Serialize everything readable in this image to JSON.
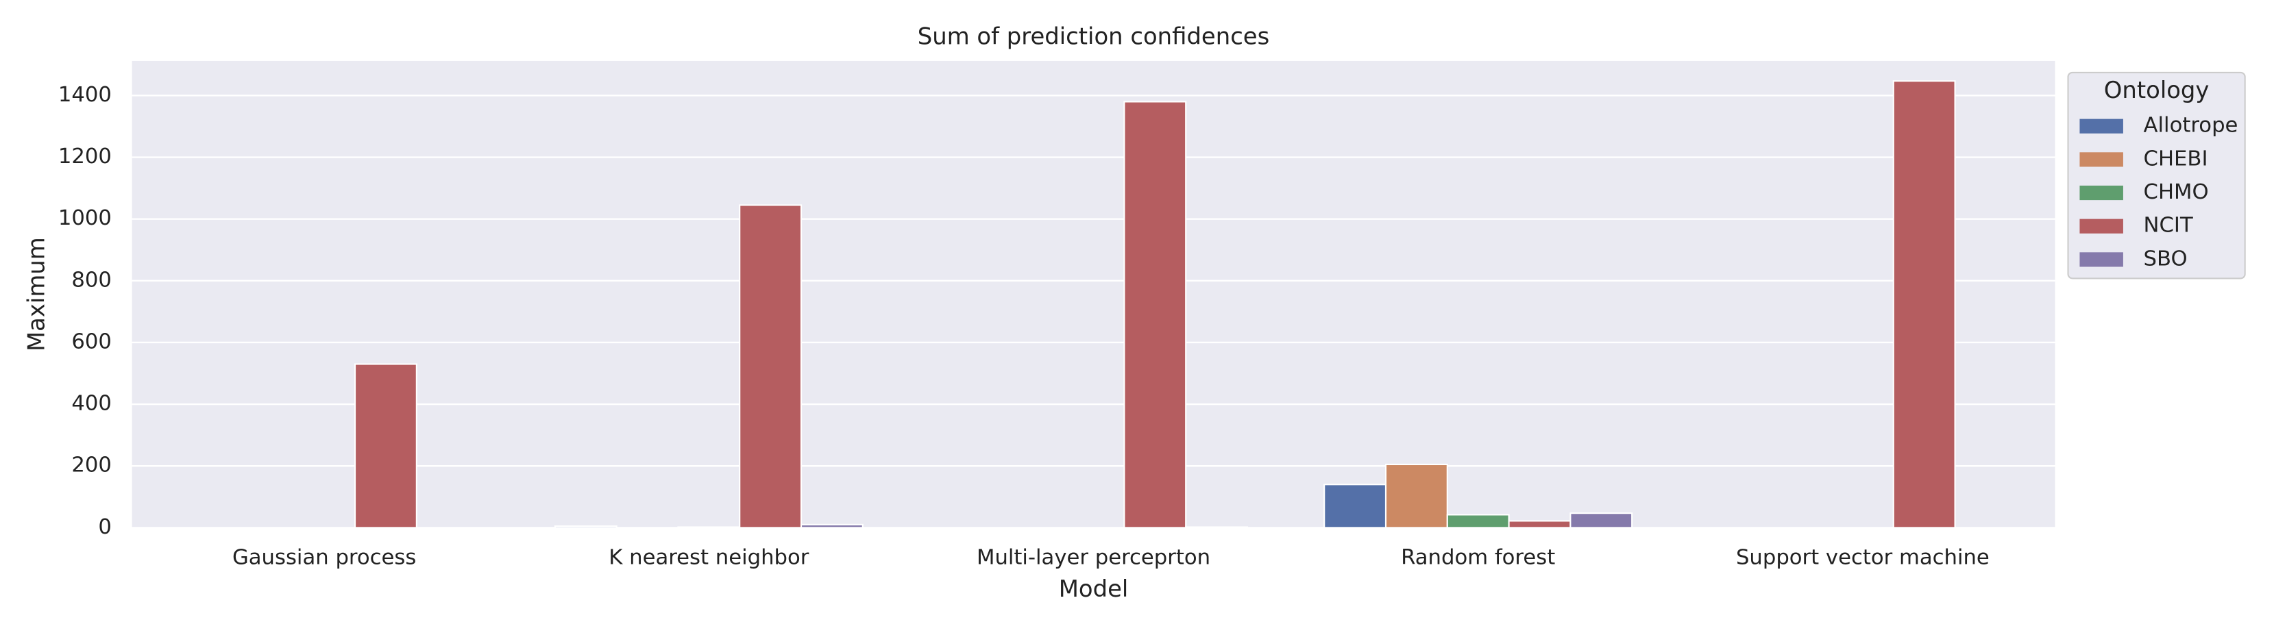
{
  "chart_data": {
    "type": "bar",
    "title": "Sum of prediction confidences",
    "x_label": "Model",
    "y_label": "Maximum",
    "legend_title": "Ontology",
    "legend_position": "outside upper right",
    "categories": [
      "Gaussian process",
      "K nearest neighbor",
      "Multi-layer perceprton",
      "Random forest",
      "Support vector machine"
    ],
    "series": [
      {
        "name": "Allotrope",
        "color": "#5470a8",
        "values": [
          0,
          5,
          0,
          140,
          0
        ]
      },
      {
        "name": "CHEBI",
        "color": "#cc8963",
        "values": [
          0,
          0,
          0,
          205,
          0
        ]
      },
      {
        "name": "CHMO",
        "color": "#5f9e6e",
        "values": [
          0,
          2,
          0,
          42,
          0
        ]
      },
      {
        "name": "NCIT",
        "color": "#b55d60",
        "values": [
          530,
          1045,
          1380,
          22,
          1447
        ]
      },
      {
        "name": "SBO",
        "color": "#857aab",
        "values": [
          0,
          10,
          2,
          47,
          0
        ]
      }
    ],
    "ylim": [
      0,
      1512
    ],
    "yticks": [
      0,
      200,
      400,
      600,
      800,
      1000,
      1200,
      1400
    ],
    "grid": true
  }
}
